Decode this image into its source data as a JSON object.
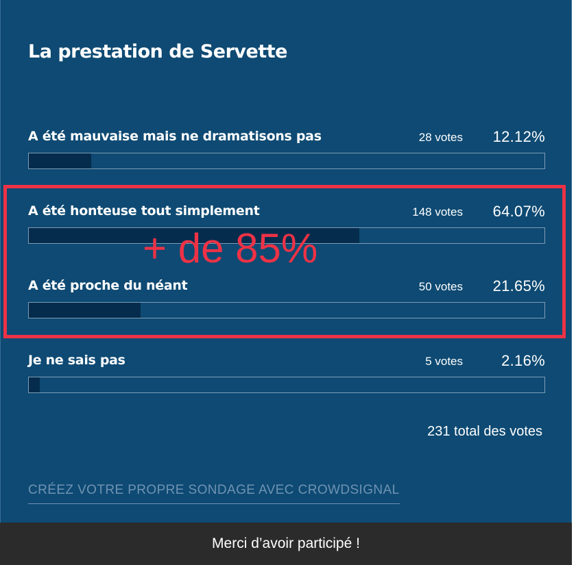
{
  "poll": {
    "title": "La prestation de Servette",
    "answers": [
      {
        "label": "A été mauvaise mais ne dramatisons pas",
        "votes": "28 votes",
        "percent": "12.12%",
        "fraction": 0.1212
      },
      {
        "label": "A été honteuse tout simplement",
        "votes": "148 votes",
        "percent": "64.07%",
        "fraction": 0.6407
      },
      {
        "label": "A été proche du néant",
        "votes": "50 votes",
        "percent": "21.65%",
        "fraction": 0.2165
      },
      {
        "label": "Je ne sais pas",
        "votes": "5 votes",
        "percent": "2.16%",
        "fraction": 0.0216
      }
    ],
    "total": "231 total des votes",
    "create_link": "CRÉEZ VOTRE PROPRE SONDAGE AVEC CROWDSIGNAL"
  },
  "annotation": {
    "text": "+ de 85%",
    "color": "#ee3246"
  },
  "footer": {
    "message": "Merci d’avoir participé !"
  },
  "colors": {
    "background": "#0e4a73",
    "bar_fill": "#052c4d",
    "footer": "#2b2b2b"
  }
}
